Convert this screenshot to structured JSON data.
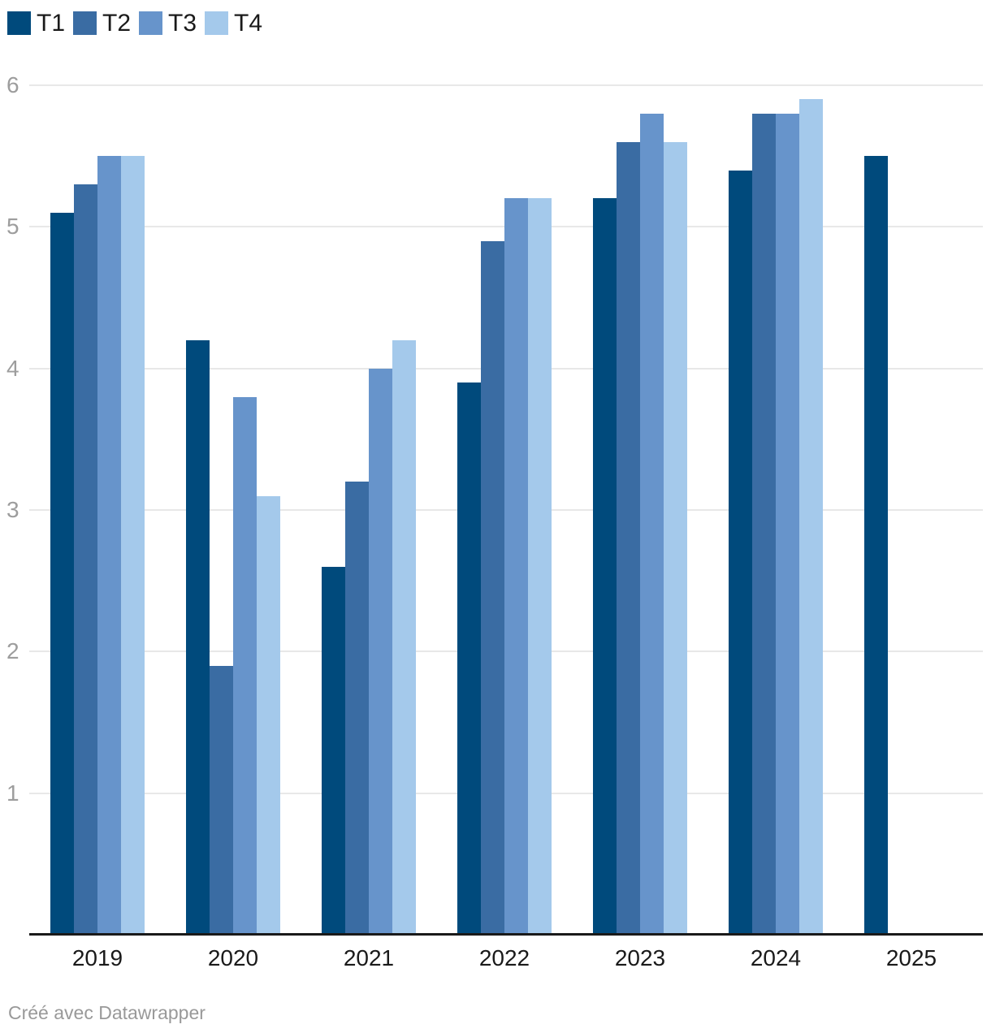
{
  "chart_data": {
    "type": "bar",
    "title": "",
    "categories": [
      "2019",
      "2020",
      "2021",
      "2022",
      "2023",
      "2024",
      "2025"
    ],
    "series": [
      {
        "name": "T1",
        "color": "#004a7c",
        "values": [
          5.1,
          4.2,
          2.6,
          3.9,
          5.2,
          5.4,
          5.5
        ]
      },
      {
        "name": "T2",
        "color": "#3a6ca3",
        "values": [
          5.3,
          1.9,
          3.2,
          4.9,
          5.6,
          5.8,
          null
        ]
      },
      {
        "name": "T3",
        "color": "#6794cb",
        "values": [
          5.5,
          3.8,
          4.0,
          5.2,
          5.8,
          5.8,
          null
        ]
      },
      {
        "name": "T4",
        "color": "#a4c9eb",
        "values": [
          5.5,
          3.1,
          4.2,
          5.2,
          5.6,
          5.9,
          null
        ]
      }
    ],
    "xlabel": "",
    "ylabel": "",
    "ylim": [
      0,
      6
    ],
    "yticks": [
      1,
      2,
      3,
      4,
      5,
      6
    ],
    "grid": true,
    "legend_position": "top-left",
    "gridline_color": "#e8e8e8",
    "axis_line_color": "#1a1a1a",
    "tick_label_color": "#9d9d9d"
  },
  "footer": {
    "credit": "Créé avec Datawrapper"
  }
}
